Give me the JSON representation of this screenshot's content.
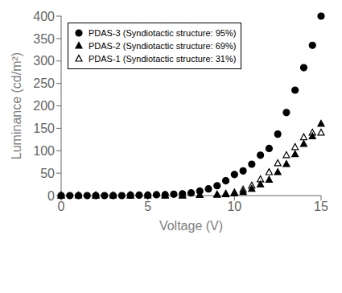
{
  "chart_data": {
    "type": "scatter",
    "xlabel": "Voltage (V)",
    "ylabel": "Luminance (cd/m²)",
    "xlim": [
      0,
      15
    ],
    "ylim": [
      0,
      400
    ],
    "xticks": [
      0,
      5,
      10,
      15
    ],
    "yticks": [
      0,
      50,
      100,
      150,
      200,
      250,
      300,
      350,
      400
    ],
    "grid": false,
    "legend": "upper left",
    "series": [
      {
        "name": "PDAS-3 (Syndiotactic structure: 95%)",
        "marker": "circle",
        "color": "black",
        "x": [
          0,
          0.5,
          1.0,
          1.5,
          2.0,
          2.5,
          3.0,
          3.5,
          4.0,
          4.5,
          5.0,
          5.5,
          6.0,
          6.5,
          7.0,
          7.5,
          8.0,
          8.5,
          9.0,
          9.5,
          10.0,
          10.5,
          11.0,
          11.5,
          12.0,
          12.5,
          13.0,
          13.5,
          14.0,
          14.5,
          15.0
        ],
        "values": [
          0,
          0,
          0,
          0,
          0,
          0,
          0,
          0,
          1,
          1,
          1,
          2,
          2,
          3,
          4,
          6,
          10,
          15,
          22,
          33,
          47,
          55,
          70,
          90,
          105,
          137,
          185,
          235,
          285,
          335,
          400
        ]
      },
      {
        "name": "PDAS-2 (Syndiotactic structure: 69%)",
        "marker": "triangle",
        "color": "black",
        "x": [
          0,
          1.0,
          2.0,
          3.0,
          4.0,
          5.0,
          6.0,
          7.0,
          8.0,
          9.0,
          9.5,
          10.0,
          10.5,
          11.0,
          11.5,
          12.0,
          12.5,
          13.0,
          13.5,
          14.0,
          14.5,
          15.0
        ],
        "values": [
          0,
          0,
          0,
          0,
          0,
          0,
          0,
          0,
          1,
          2,
          3,
          5,
          8,
          15,
          25,
          35,
          52,
          70,
          92,
          115,
          132,
          160
        ]
      },
      {
        "name": "PDAS-1 (Syndiotactic structure: 31%)",
        "marker": "open-triangle",
        "color": "black",
        "x": [
          0,
          2.0,
          4.0,
          6.0,
          7.0,
          8.0,
          9.0,
          9.5,
          10.0,
          10.5,
          11.0,
          11.5,
          12.0,
          12.5,
          13.0,
          13.5,
          14.0,
          14.5,
          15.0
        ],
        "values": [
          0,
          0,
          0,
          0,
          0,
          1,
          2,
          4,
          7,
          13,
          22,
          36,
          52,
          72,
          90,
          108,
          130,
          140,
          140
        ]
      }
    ]
  }
}
